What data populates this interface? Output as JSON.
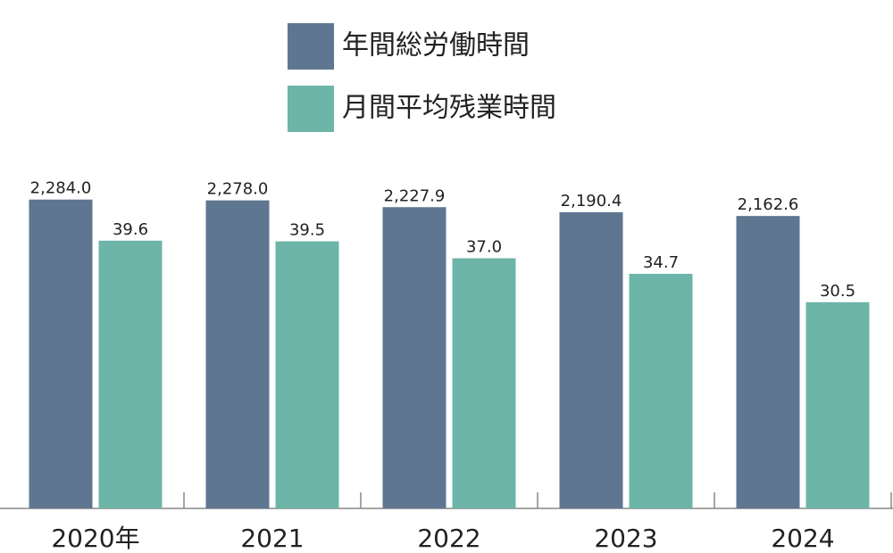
{
  "chart_data": {
    "type": "bar",
    "categories": [
      "2020年",
      "2021",
      "2022",
      "2023",
      "2024"
    ],
    "series": [
      {
        "name": "年間総労働時間",
        "color": "#5f7691",
        "values": [
          2284.0,
          2278.0,
          2227.9,
          2190.4,
          2162.6
        ],
        "value_labels": [
          "2,284.0",
          "2,278.0",
          "2,227.9",
          "2,190.4",
          "2,162.6"
        ]
      },
      {
        "name": "月間平均残業時間",
        "color": "#6db5a8",
        "axis": "y2",
        "values": [
          39.6,
          39.5,
          37.0,
          34.7,
          30.5
        ],
        "value_labels": [
          "39.6",
          "39.5",
          "37.0",
          "34.7",
          "30.5"
        ]
      }
    ],
    "ylim": [
      0,
      2500
    ],
    "y2lim": [
      0,
      50
    ]
  }
}
